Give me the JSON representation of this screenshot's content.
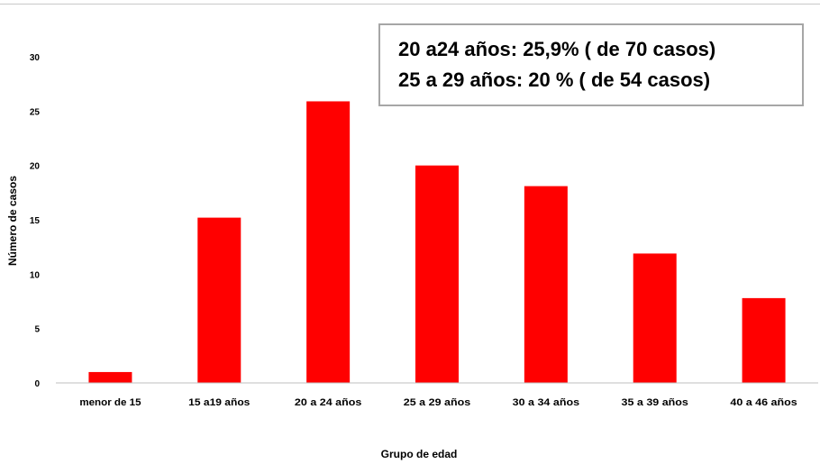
{
  "chart_data": {
    "type": "bar",
    "categories": [
      "menor de 15",
      "15 a19 años",
      "20 a 24 años",
      "25 a 29 años",
      "30 a 34 años",
      "35 a 39 años",
      "40 a 46 años"
    ],
    "values": [
      1,
      15.2,
      25.9,
      20,
      18.1,
      11.9,
      7.8
    ],
    "xlabel": "Grupo de edad",
    "ylabel": "Número de casos",
    "ylim": [
      0,
      30
    ],
    "yticks": [
      0,
      5,
      10,
      15,
      20,
      25,
      30
    ],
    "grid": false,
    "bar_color": "#ff0000"
  },
  "annotation": {
    "line1": "20 a24 años: 25,9% ( de 70 casos)",
    "line2": "25 a 29 años: 20 % ( de 54 casos)"
  }
}
